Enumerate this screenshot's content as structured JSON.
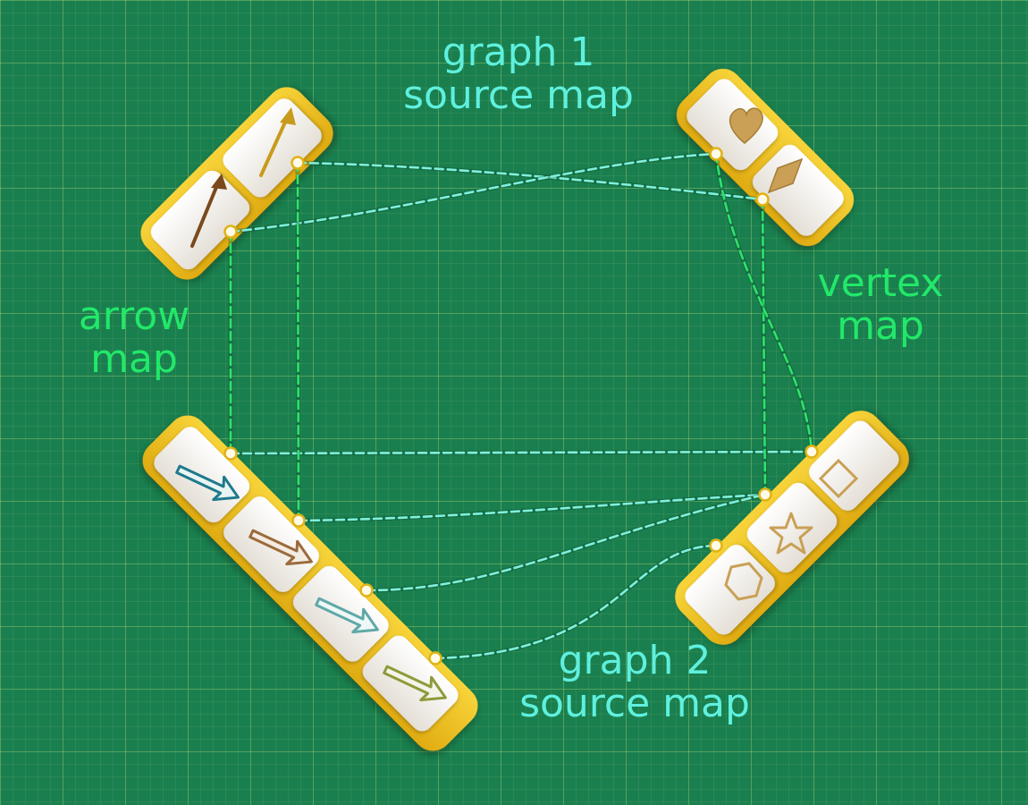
{
  "labels": {
    "graph1": {
      "line1": "graph 1",
      "line2": "source map",
      "color": "#5ff0de"
    },
    "graph2": {
      "line1": "graph 2",
      "line2": "source map",
      "color": "#5ff0de"
    },
    "arrow_map": {
      "line1": "arrow",
      "line2": "map",
      "color": "#22e86a"
    },
    "vertex_map": {
      "line1": "vertex",
      "line2": "map",
      "color": "#22e86a"
    }
  },
  "colors": {
    "background": "#1a7f4f",
    "tray": "#f2c320",
    "tile": "#f1ede6",
    "cyan_link": "#7ff0dc",
    "green_link": "#2ee36a"
  },
  "trays": [
    {
      "id": "graph1-arrows",
      "icons": [
        "brown-arrow-icon",
        "gold-arrow-icon"
      ]
    },
    {
      "id": "graph1-vertices",
      "icons": [
        "heart-icon",
        "diamond-icon"
      ]
    },
    {
      "id": "graph2-arrows",
      "icons": [
        "teal-outline-arrow-icon",
        "brown-outline-arrow-icon",
        "light-teal-outline-arrow-icon",
        "olive-outline-arrow-icon"
      ]
    },
    {
      "id": "graph2-vertices",
      "icons": [
        "hexagon-icon",
        "star-icon",
        "square-icon"
      ]
    }
  ]
}
